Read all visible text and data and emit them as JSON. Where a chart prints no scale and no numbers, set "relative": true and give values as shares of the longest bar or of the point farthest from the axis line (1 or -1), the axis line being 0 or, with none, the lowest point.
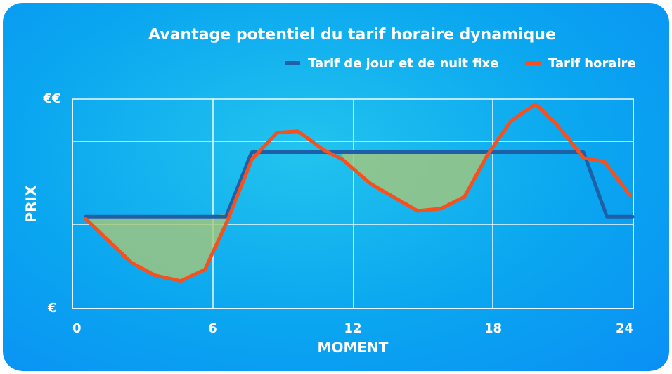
{
  "chart_data": {
    "type": "line",
    "title": "Avantage potentiel du tarif horaire dynamique",
    "xlabel": "MOMENT",
    "ylabel": "PRIX",
    "xlim": [
      0,
      24
    ],
    "xticks": [
      0,
      6,
      12,
      18,
      24
    ],
    "relative": true,
    "annotations": [
      "€€",
      "€"
    ],
    "grid": true,
    "legend": "top right",
    "series": [
      {
        "name": "Tarif de jour et de nuit fixe",
        "color": "#1f5fa8",
        "x": [
          0.6,
          6.6,
          7.7,
          21.9,
          22.9,
          24
        ],
        "values": [
          0.448,
          0.448,
          0.764,
          0.764,
          0.448,
          0.448
        ]
      },
      {
        "name": "Tarif horaire",
        "color": "#f4511e",
        "x": [
          0.6,
          2.55,
          3.56,
          4.66,
          5.7,
          6.67,
          7.71,
          8.78,
          9.68,
          10.78,
          11.58,
          12.79,
          14.8,
          15.8,
          16.8,
          17.8,
          18.8,
          19.85,
          20.8,
          21.9,
          22.8,
          23.9
        ],
        "values": [
          0.437,
          0.223,
          0.16,
          0.132,
          0.188,
          0.43,
          0.729,
          0.86,
          0.867,
          0.775,
          0.729,
          0.609,
          0.476,
          0.487,
          0.545,
          0.752,
          0.918,
          1,
          0.894,
          0.736,
          0.717,
          0.552
        ],
        "lower": [
          0.437,
          0.223,
          0.16,
          0.132,
          0.188,
          0.43,
          null,
          null,
          null,
          null,
          0.729,
          0.609,
          0.476,
          0.487,
          0.545,
          0.752,
          null,
          null,
          null,
          null,
          null,
          null
        ],
        "upper": [
          0.448,
          0.448,
          0.448,
          0.448,
          0.448,
          0.462,
          null,
          null,
          null,
          null,
          0.764,
          0.764,
          0.764,
          0.764,
          0.764,
          0.764,
          null,
          null,
          null,
          null,
          null,
          null
        ]
      }
    ]
  }
}
